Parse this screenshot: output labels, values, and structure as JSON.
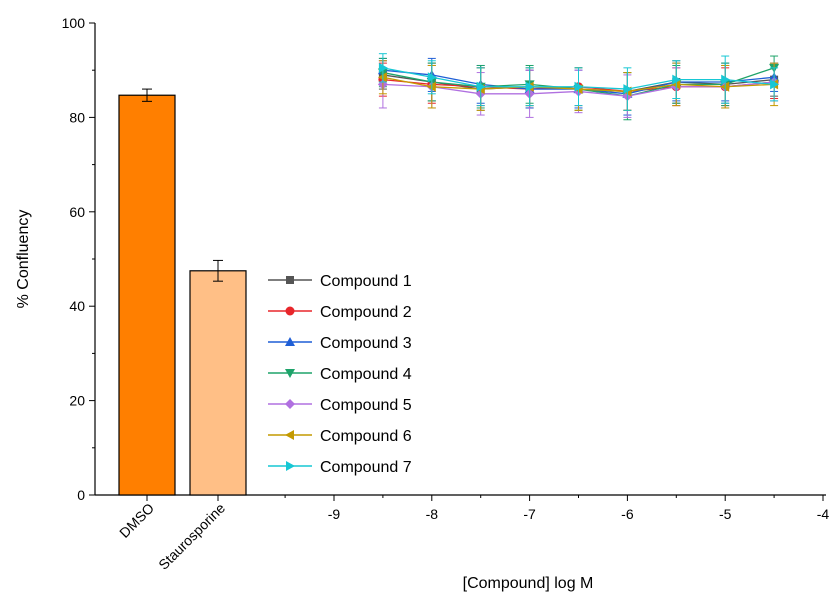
{
  "chart_data": {
    "type": "bar+line",
    "title": "",
    "ylabel": "% Confluency",
    "xlabel": "[Compound] log M",
    "ylim": [
      0,
      100
    ],
    "yticks": [
      0,
      20,
      40,
      60,
      80,
      100
    ],
    "xlim": [
      -10,
      -4
    ],
    "xticks": [
      -9,
      -8,
      -7,
      -6,
      -5,
      -4
    ],
    "grid": false,
    "legend_position": "center",
    "bars": [
      {
        "label": "DMSO",
        "value": 84.7,
        "error": 1.3,
        "color": "#ff7f00"
      },
      {
        "label": "Staurosporine",
        "value": 47.5,
        "error": 2.2,
        "color": "#ffbf86"
      }
    ],
    "x": [
      -8.5,
      -8.0,
      -7.5,
      -7.0,
      -6.5,
      -6.0,
      -5.5,
      -5.0,
      -4.5
    ],
    "series": [
      {
        "name": "Compound 1",
        "color": "#555555",
        "marker": "square",
        "values": [
          89.0,
          87.5,
          86.0,
          86.5,
          86.0,
          85.5,
          87.5,
          87.0,
          88.0
        ],
        "errors": [
          3.0,
          4.0,
          4.5,
          4.0,
          4.5,
          4.0,
          4.5,
          4.0,
          3.5
        ]
      },
      {
        "name": "Compound 2",
        "color": "#e8262b",
        "marker": "circle",
        "values": [
          88.0,
          87.0,
          86.5,
          86.0,
          86.5,
          85.5,
          86.5,
          86.5,
          87.5
        ],
        "errors": [
          3.5,
          4.0,
          4.0,
          4.0,
          4.0,
          4.0,
          4.0,
          4.0,
          3.5
        ]
      },
      {
        "name": "Compound 3",
        "color": "#1f5fd6",
        "marker": "triangle-up",
        "values": [
          90.0,
          89.0,
          87.0,
          86.0,
          86.0,
          85.0,
          87.5,
          87.5,
          88.5
        ],
        "errors": [
          2.5,
          3.5,
          4.0,
          4.0,
          4.0,
          4.5,
          4.0,
          4.0,
          3.0
        ]
      },
      {
        "name": "Compound 4",
        "color": "#1ea36a",
        "marker": "triangle-down",
        "values": [
          89.5,
          87.5,
          86.5,
          87.0,
          86.0,
          84.5,
          87.0,
          87.0,
          90.5
        ],
        "errors": [
          3.0,
          4.0,
          4.5,
          4.0,
          4.5,
          5.0,
          4.0,
          4.5,
          2.5
        ]
      },
      {
        "name": "Compound 5",
        "color": "#b070e0",
        "marker": "diamond",
        "values": [
          87.0,
          86.5,
          85.0,
          85.0,
          85.5,
          84.5,
          86.5,
          86.5,
          87.5
        ],
        "errors": [
          5.0,
          4.5,
          4.5,
          5.0,
          4.5,
          4.5,
          4.0,
          4.5,
          4.0
        ]
      },
      {
        "name": "Compound 6",
        "color": "#c49a00",
        "marker": "triangle-left",
        "values": [
          88.5,
          86.5,
          86.0,
          86.5,
          86.0,
          85.5,
          87.0,
          86.5,
          87.0
        ],
        "errors": [
          3.5,
          4.5,
          4.5,
          4.0,
          4.5,
          4.0,
          4.5,
          4.5,
          4.5
        ]
      },
      {
        "name": "Compound 7",
        "color": "#17c7d4",
        "marker": "triangle-right",
        "values": [
          90.5,
          88.5,
          86.5,
          86.5,
          86.5,
          86.0,
          88.0,
          88.0,
          87.0
        ],
        "errors": [
          3.0,
          3.5,
          4.0,
          4.0,
          4.0,
          4.5,
          4.0,
          5.0,
          3.5
        ]
      }
    ]
  }
}
